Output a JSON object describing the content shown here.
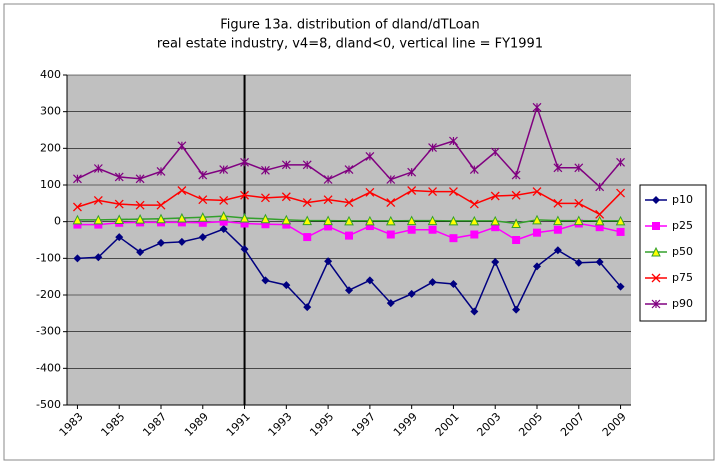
{
  "chart_data": {
    "type": "line",
    "title": "Figure 13a. distribution of dland/dTLoan",
    "subtitle": "real estate industry, v4=8, dland<0, vertical line = FY1991",
    "x": [
      1983,
      1984,
      1985,
      1986,
      1987,
      1988,
      1989,
      1990,
      1991,
      1992,
      1993,
      1994,
      1995,
      1996,
      1997,
      1998,
      1999,
      2000,
      2001,
      2002,
      2003,
      2004,
      2005,
      2006,
      2007,
      2008,
      2009
    ],
    "xlim": [
      1982.5,
      2009.5
    ],
    "xticks": [
      1983,
      1985,
      1987,
      1989,
      1991,
      1993,
      1995,
      1997,
      1999,
      2001,
      2003,
      2005,
      2007,
      2009
    ],
    "vline": 1991,
    "ylim": [
      -500,
      400
    ],
    "yticks": [
      -500,
      -400,
      -300,
      -200,
      -100,
      0,
      100,
      200,
      300,
      400
    ],
    "grid": true,
    "legend": "right",
    "series": [
      {
        "name": "p10",
        "color": "#000080",
        "marker": "diamond",
        "values": [
          -100,
          -97,
          -42,
          -83,
          -58,
          -55,
          -42,
          -20,
          -75,
          -160,
          -173,
          -233,
          -108,
          -187,
          -160,
          -222,
          -197,
          -165,
          -170,
          -245,
          -110,
          -240,
          -122,
          -78,
          -112,
          -110,
          -177
        ]
      },
      {
        "name": "p25",
        "color": "#ff00ff",
        "marker": "square",
        "values": [
          -8,
          -8,
          -3,
          -2,
          -2,
          -2,
          -3,
          0,
          -5,
          -7,
          -8,
          -42,
          -13,
          -38,
          -12,
          -35,
          -22,
          -22,
          -45,
          -35,
          -15,
          -50,
          -30,
          -22,
          -5,
          -15,
          -28
        ]
      },
      {
        "name": "p50",
        "color": "#33a02c",
        "marker": "triangle",
        "values": [
          5,
          5,
          6,
          7,
          8,
          10,
          12,
          15,
          10,
          8,
          5,
          3,
          3,
          2,
          2,
          2,
          3,
          3,
          2,
          2,
          2,
          -5,
          5,
          3,
          3,
          2,
          2
        ]
      },
      {
        "name": "p75",
        "color": "#ff0000",
        "marker": "x",
        "values": [
          40,
          58,
          48,
          45,
          45,
          85,
          60,
          58,
          72,
          65,
          68,
          52,
          60,
          52,
          80,
          52,
          85,
          82,
          82,
          48,
          70,
          72,
          82,
          50,
          50,
          20,
          78
        ]
      },
      {
        "name": "p90",
        "color": "#800080",
        "marker": "star",
        "values": [
          117,
          145,
          122,
          117,
          137,
          207,
          127,
          142,
          162,
          140,
          155,
          155,
          115,
          142,
          178,
          115,
          135,
          202,
          220,
          142,
          190,
          127,
          312,
          147,
          147,
          95,
          162
        ]
      }
    ]
  }
}
